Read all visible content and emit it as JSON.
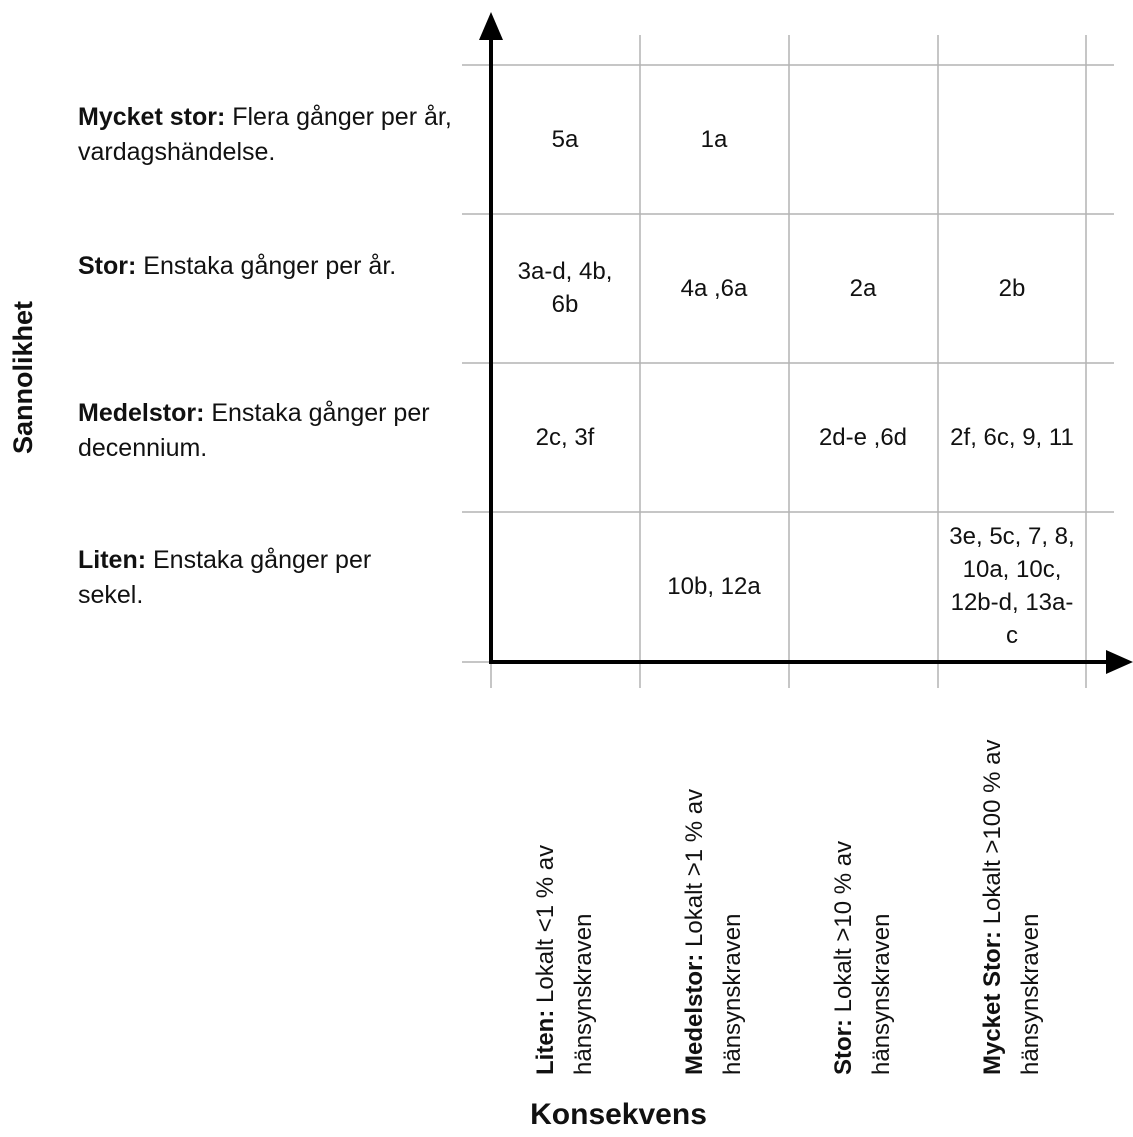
{
  "y_axis_title": "Sannolikhet",
  "x_axis_title": "Konsekvens",
  "rows": [
    {
      "name": "Mycket stor:",
      "desc": " Flera gånger per år, vardagshändelse."
    },
    {
      "name": "Stor:",
      "desc": " Enstaka gånger per år."
    },
    {
      "name": "Medelstor:",
      "desc": " Enstaka gånger per decennium."
    },
    {
      "name": "Liten:",
      "desc": " Enstaka gånger per sekel."
    }
  ],
  "columns": [
    {
      "name": "Liten:",
      "desc": " Lokalt <1 % av",
      "line2": "hänsynskraven"
    },
    {
      "name": "Medelstor:",
      "desc": " Lokalt >1 % av",
      "line2": "hänsynskraven"
    },
    {
      "name": "Stor:",
      "desc": " Lokalt >10 % av",
      "line2": "hänsynskraven"
    },
    {
      "name": "Mycket Stor:",
      "desc": " Lokalt >100 % av",
      "line2": "hänsynskraven"
    }
  ],
  "cells": [
    [
      "5a",
      "1a",
      "",
      ""
    ],
    [
      "3a-d, 4b, 6b",
      "4a ,6a",
      "2a",
      "2b"
    ],
    [
      "2c, 3f",
      "",
      "2d-e ,6d",
      "2f, 6c, 9, 11"
    ],
    [
      "",
      "10b, 12a",
      "",
      "3e, 5c, 7, 8, 10a, 10c, 12b-d, 13a-c"
    ]
  ],
  "colors": {
    "grid": "#b3b3b3",
    "axis": "#000000",
    "text": "#111111"
  }
}
